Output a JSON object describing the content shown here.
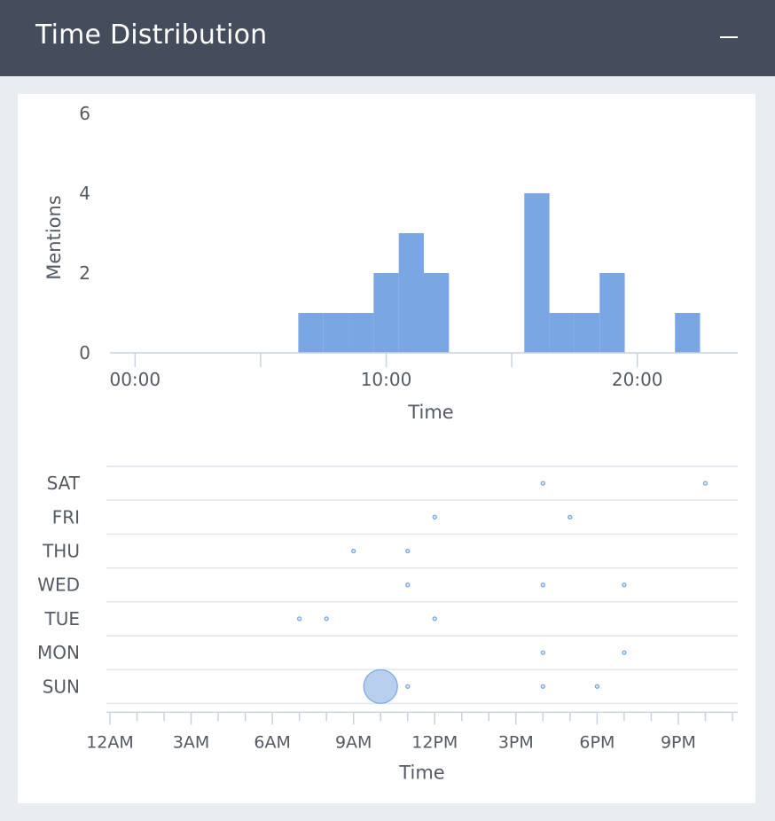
{
  "header": {
    "title": "Time Distribution",
    "minimize_icon": "minimize-icon"
  },
  "colors": {
    "bar": "#7aa6e4",
    "dot": "#7aa6e4",
    "bubble_fill": "#b8cff0",
    "bubble_stroke": "#7aa6e4",
    "axis": "#c9d3de",
    "grid": "#e1e6ec",
    "text": "#555b63"
  },
  "chart_data": [
    {
      "type": "bar",
      "title": "",
      "xlabel": "Time",
      "ylabel": "Mentions",
      "ylim": [
        0,
        6
      ],
      "xlim": [
        -1,
        24
      ],
      "yticks": [
        0,
        2,
        4,
        6
      ],
      "xticks": [
        {
          "value": 0,
          "label": "00:00"
        },
        {
          "value": 10,
          "label": "10:00"
        },
        {
          "value": 20,
          "label": "20:00"
        }
      ],
      "bin_width_hours": 1,
      "bins": [
        {
          "start": 6.5,
          "value": 1
        },
        {
          "start": 7.5,
          "value": 1
        },
        {
          "start": 8.5,
          "value": 1
        },
        {
          "start": 9.5,
          "value": 2
        },
        {
          "start": 10.5,
          "value": 3
        },
        {
          "start": 11.5,
          "value": 2
        },
        {
          "start": 15.5,
          "value": 4
        },
        {
          "start": 16.5,
          "value": 1
        },
        {
          "start": 17.5,
          "value": 1
        },
        {
          "start": 18.5,
          "value": 2
        },
        {
          "start": 21.5,
          "value": 1
        }
      ]
    },
    {
      "type": "scatter",
      "title": "",
      "xlabel": "Time",
      "ylabel": "",
      "xlim": [
        0,
        23
      ],
      "days": [
        "SAT",
        "FRI",
        "THU",
        "WED",
        "TUE",
        "MON",
        "SUN"
      ],
      "xticks": [
        {
          "value": 0,
          "label": "12AM"
        },
        {
          "value": 3,
          "label": "3AM"
        },
        {
          "value": 6,
          "label": "6AM"
        },
        {
          "value": 9,
          "label": "9AM"
        },
        {
          "value": 12,
          "label": "12PM"
        },
        {
          "value": 15,
          "label": "3PM"
        },
        {
          "value": 18,
          "label": "6PM"
        },
        {
          "value": 21,
          "label": "9PM"
        }
      ],
      "points": [
        {
          "day": "SAT",
          "hour": 16,
          "count": 1
        },
        {
          "day": "SAT",
          "hour": 22,
          "count": 1
        },
        {
          "day": "FRI",
          "hour": 12,
          "count": 1
        },
        {
          "day": "FRI",
          "hour": 17,
          "count": 1
        },
        {
          "day": "THU",
          "hour": 9,
          "count": 1
        },
        {
          "day": "THU",
          "hour": 11,
          "count": 1
        },
        {
          "day": "WED",
          "hour": 11,
          "count": 1
        },
        {
          "day": "WED",
          "hour": 16,
          "count": 1
        },
        {
          "day": "WED",
          "hour": 19,
          "count": 1
        },
        {
          "day": "TUE",
          "hour": 7,
          "count": 1
        },
        {
          "day": "TUE",
          "hour": 8,
          "count": 1
        },
        {
          "day": "TUE",
          "hour": 12,
          "count": 1
        },
        {
          "day": "MON",
          "hour": 16,
          "count": 1
        },
        {
          "day": "MON",
          "hour": 19,
          "count": 1
        },
        {
          "day": "SUN",
          "hour": 10,
          "count": 6
        },
        {
          "day": "SUN",
          "hour": 11,
          "count": 1
        },
        {
          "day": "SUN",
          "hour": 16,
          "count": 1
        },
        {
          "day": "SUN",
          "hour": 18,
          "count": 1
        }
      ]
    }
  ]
}
